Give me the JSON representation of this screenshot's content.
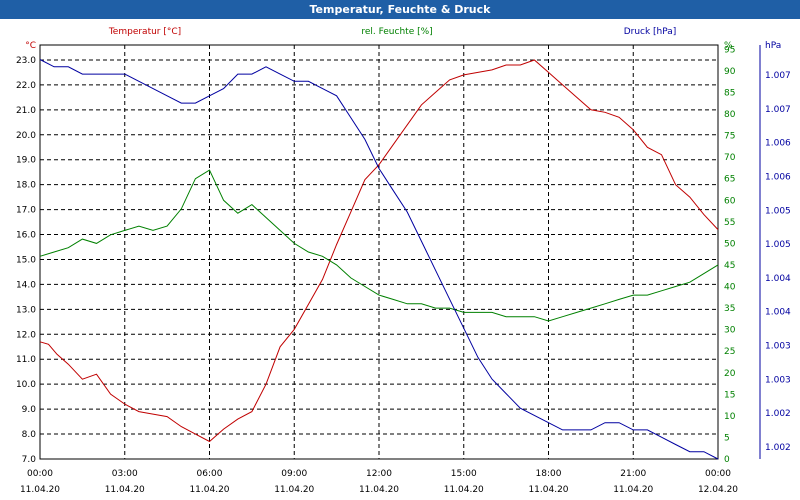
{
  "window": {
    "title": "Temperatur, Feuchte & Druck"
  },
  "chart_data": {
    "type": "line",
    "title": "Temperatur, Feuchte & Druck",
    "x_ticks": [
      {
        "time": "00:00",
        "date": "11.04.20"
      },
      {
        "time": "03:00",
        "date": "11.04.20"
      },
      {
        "time": "06:00",
        "date": "11.04.20"
      },
      {
        "time": "09:00",
        "date": "11.04.20"
      },
      {
        "time": "12:00",
        "date": "11.04.20"
      },
      {
        "time": "15:00",
        "date": "11.04.20"
      },
      {
        "time": "18:00",
        "date": "11.04.20"
      },
      {
        "time": "21:00",
        "date": "11.04.20"
      },
      {
        "time": "00:00",
        "date": "12.04.20"
      }
    ],
    "x_range_hours": [
      0,
      24
    ],
    "axes": {
      "temperature": {
        "unit": "°C",
        "range": [
          7.0,
          23.6
        ],
        "ticks": [
          "7.0",
          "8.0",
          "9.0",
          "10.0",
          "11.0",
          "12.0",
          "13.0",
          "14.0",
          "15.0",
          "16.0",
          "17.0",
          "18.0",
          "19.0",
          "20.0",
          "21.0",
          "22.0",
          "23.0"
        ],
        "color": "#c00000"
      },
      "humidity": {
        "unit": "%",
        "range": [
          0,
          96
        ],
        "ticks": [
          "0",
          "5",
          "10",
          "15",
          "20",
          "25",
          "30",
          "35",
          "40",
          "45",
          "50",
          "55",
          "60",
          "65",
          "70",
          "75",
          "80",
          "85",
          "90",
          "95"
        ],
        "color": "#008000"
      },
      "pressure": {
        "unit": "hPa",
        "range": [
          1001.8,
          1007.5
        ],
        "ticks": [
          "1.002",
          "1.002",
          "1.003",
          "1.003",
          "1.004",
          "1.004",
          "1.005",
          "1.005",
          "1.006",
          "1.006",
          "1.007",
          "1.007"
        ],
        "color": "#0000a0"
      }
    },
    "series": [
      {
        "name": "Temperatur [°C]",
        "axis": "temperature",
        "color": "#c00000",
        "x": [
          0,
          0.3,
          0.6,
          1,
          1.5,
          2,
          2.5,
          3,
          3.5,
          4,
          4.5,
          5,
          5.5,
          6,
          6.5,
          7,
          7.5,
          8,
          8.5,
          9,
          9.5,
          10,
          10.5,
          11,
          11.5,
          12,
          12.5,
          13,
          13.5,
          14,
          14.5,
          15,
          15.5,
          16,
          16.5,
          17,
          17.5,
          18,
          18.5,
          19,
          19.5,
          20,
          20.5,
          21,
          21.5,
          22,
          22.5,
          23,
          23.5,
          24
        ],
        "values": [
          11.7,
          11.6,
          11.2,
          10.8,
          10.2,
          10.4,
          9.6,
          9.2,
          8.9,
          8.8,
          8.7,
          8.3,
          8.0,
          7.7,
          8.2,
          8.6,
          8.9,
          10.0,
          11.5,
          12.2,
          13.2,
          14.2,
          15.6,
          16.9,
          18.2,
          18.8,
          19.6,
          20.4,
          21.2,
          21.7,
          22.2,
          22.4,
          22.5,
          22.6,
          22.8,
          22.8,
          23.0,
          22.5,
          22.0,
          21.5,
          21.0,
          20.9,
          20.7,
          20.2,
          19.5,
          19.2,
          18.0,
          17.5,
          16.8,
          16.2
        ]
      },
      {
        "name": "rel. Feuchte [%]",
        "axis": "humidity",
        "color": "#008000",
        "x": [
          0,
          0.5,
          1,
          1.5,
          2,
          2.5,
          3,
          3.5,
          4,
          4.5,
          5,
          5.5,
          6,
          6.5,
          7,
          7.5,
          8,
          8.5,
          9,
          9.5,
          10,
          10.5,
          11,
          11.5,
          12,
          12.5,
          13,
          13.5,
          14,
          14.5,
          15,
          15.5,
          16,
          16.5,
          17,
          17.5,
          18,
          18.5,
          19,
          19.5,
          20,
          20.5,
          21,
          21.5,
          22,
          22.5,
          23,
          23.5,
          24
        ],
        "values": [
          47,
          48,
          49,
          51,
          50,
          52,
          53,
          54,
          53,
          54,
          58,
          65,
          67,
          60,
          57,
          59,
          56,
          53,
          50,
          48,
          47,
          45,
          42,
          40,
          38,
          37,
          36,
          36,
          35,
          35,
          34,
          34,
          34,
          33,
          33,
          33,
          32,
          33,
          34,
          35,
          36,
          37,
          38,
          38,
          39,
          40,
          41,
          43,
          45
        ]
      },
      {
        "name": "Druck [hPa]",
        "axis": "pressure",
        "color": "#0000a0",
        "x": [
          0,
          0.5,
          1,
          1.5,
          2,
          2.5,
          3,
          3.5,
          4,
          4.5,
          5,
          5.5,
          6,
          6.5,
          7,
          7.5,
          8,
          8.5,
          9,
          9.5,
          10,
          10.5,
          11,
          11.5,
          12,
          12.5,
          13,
          13.5,
          14,
          14.5,
          15,
          15.5,
          16,
          16.5,
          17,
          17.5,
          18,
          18.5,
          19,
          19.5,
          20,
          20.5,
          21,
          21.5,
          22,
          22.5,
          23,
          23.5,
          24
        ],
        "values": [
          1007.3,
          1007.2,
          1007.2,
          1007.1,
          1007.1,
          1007.1,
          1007.1,
          1007.0,
          1006.9,
          1006.8,
          1006.7,
          1006.7,
          1006.8,
          1006.9,
          1007.1,
          1007.1,
          1007.2,
          1007.1,
          1007.0,
          1007.0,
          1006.9,
          1006.8,
          1006.5,
          1006.2,
          1005.8,
          1005.5,
          1005.2,
          1004.8,
          1004.4,
          1004.0,
          1003.6,
          1003.2,
          1002.9,
          1002.7,
          1002.5,
          1002.4,
          1002.3,
          1002.2,
          1002.2,
          1002.2,
          1002.3,
          1002.3,
          1002.2,
          1002.2,
          1002.1,
          1002.0,
          1001.9,
          1001.9,
          1001.8
        ]
      }
    ],
    "legend": [
      {
        "label": "Temperatur [°C]",
        "color": "#c00000"
      },
      {
        "label": "rel. Feuchte [%]",
        "color": "#008000"
      },
      {
        "label": "Druck [hPa]",
        "color": "#0000a0"
      }
    ],
    "grid": true
  }
}
